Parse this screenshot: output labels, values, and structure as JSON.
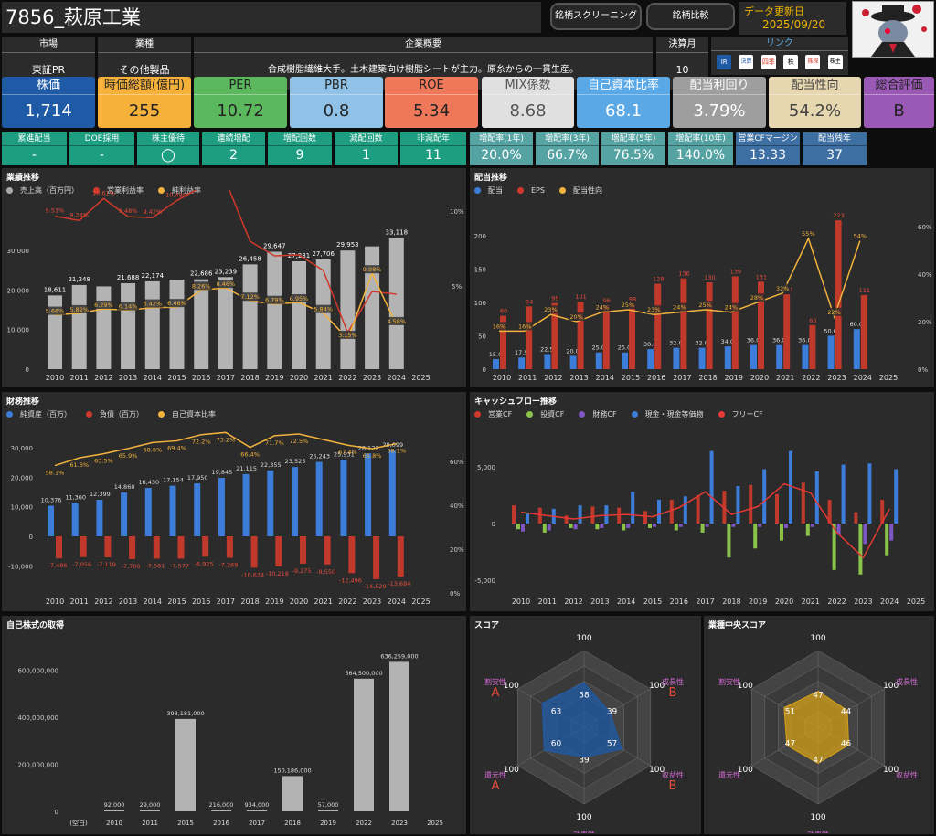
{
  "header": {
    "title": "7856_萩原工業",
    "screening_btn": "銘柄スクリーニング",
    "compare_btn": "銘柄比較",
    "update_label": "データ更新日",
    "update_date": "2025/09/20"
  },
  "info": {
    "market_h": "市場",
    "market_v": "東証PR",
    "industry_h": "業種",
    "industry_v": "その他製品",
    "summary_h": "企業概要",
    "summary_v": "合成樹脂繊維大手。土木建築向け樹脂シートが主力。原糸からの一貫生産。",
    "fy_h": "決算月",
    "fy_v": "10",
    "link_h": "リンク",
    "links": [
      "IR",
      "決算",
      "四季",
      "株",
      "株探",
      "株主"
    ]
  },
  "kpis": [
    {
      "label": "株価",
      "value": "1,714",
      "bg": "#1f5aa6",
      "fg": "#fff"
    },
    {
      "label": "時価総額(億円)",
      "value": "255",
      "bg": "#f5b13a",
      "fg": "#222"
    },
    {
      "label": "PER",
      "value": "10.72",
      "bg": "#5cb85c",
      "fg": "#222"
    },
    {
      "label": "PBR",
      "value": "0.8",
      "bg": "#8fc2e6",
      "fg": "#222"
    },
    {
      "label": "ROE",
      "value": "5.34",
      "bg": "#f0785a",
      "fg": "#222"
    },
    {
      "label": "MIX係数",
      "value": "8.68",
      "bg": "#e0e0e0",
      "fg": "#555"
    },
    {
      "label": "自己資本比率",
      "value": "68.1",
      "bg": "#5aa9e6",
      "fg": "#fff"
    },
    {
      "label": "配当利回り",
      "value": "3.79%",
      "bg": "#9e9e9e",
      "fg": "#fff"
    },
    {
      "label": "配当性向",
      "value": "54.2%",
      "bg": "#e6d7b0",
      "fg": "#444"
    },
    {
      "label": "総合評価",
      "value": "B",
      "bg": "#9b59b6",
      "fg": "#222"
    }
  ],
  "stats": [
    {
      "label": "累進配当",
      "value": "-",
      "bg": "#1e9e80"
    },
    {
      "label": "DOE採用",
      "value": "-",
      "bg": "#1e9e80"
    },
    {
      "label": "株主優待",
      "value": "◯",
      "bg": "#1e9e80"
    },
    {
      "label": "連続増配",
      "value": "2",
      "bg": "#1e9e80"
    },
    {
      "label": "増配回数",
      "value": "9",
      "bg": "#1e9e80"
    },
    {
      "label": "減配回数",
      "value": "1",
      "bg": "#1e9e80"
    },
    {
      "label": "非減配年",
      "value": "11",
      "bg": "#1e9e80"
    },
    {
      "label": "増配率(1年)",
      "value": "20.0%",
      "bg": "#56a3a3"
    },
    {
      "label": "増配率(3年)",
      "value": "66.7%",
      "bg": "#56a3a3"
    },
    {
      "label": "増配率(5年)",
      "value": "76.5%",
      "bg": "#56a3a3"
    },
    {
      "label": "増配率(10年)",
      "value": "140.0%",
      "bg": "#56a3a3"
    },
    {
      "label": "営業CFマージン",
      "value": "13.33",
      "bg": "#3e6fa3"
    },
    {
      "label": "配当残年",
      "value": "37",
      "bg": "#3e6fa3"
    }
  ],
  "panels": {
    "p1": "業績推移",
    "p2": "配当推移",
    "p3": "財務推移",
    "p4": "キャッシュフロー推移",
    "p5": "自己株式の取得",
    "p6": "スコア",
    "p7": "業種中央スコア"
  },
  "legends": {
    "p1": [
      {
        "t": "売上高（百万円）",
        "c": "#aaa"
      },
      {
        "t": "営業利益率",
        "c": "#d0392b"
      },
      {
        "t": "純利益率",
        "c": "#f2b33d"
      }
    ],
    "p2": [
      {
        "t": "配当",
        "c": "#3b7dd8"
      },
      {
        "t": "EPS",
        "c": "#d0392b"
      },
      {
        "t": "配当性向",
        "c": "#f2b33d"
      }
    ],
    "p3": [
      {
        "t": "純資産（百万）",
        "c": "#3b7dd8"
      },
      {
        "t": "負債（百万）",
        "c": "#d0392b"
      },
      {
        "t": "自己資本比率",
        "c": "#f2b33d"
      }
    ],
    "p4": [
      {
        "t": "営業CF",
        "c": "#d0392b"
      },
      {
        "t": "投資CF",
        "c": "#8bc34a"
      },
      {
        "t": "財務CF",
        "c": "#7e57c2"
      },
      {
        "t": "現金・現金等価物",
        "c": "#3b7dd8"
      },
      {
        "t": "フリーCF",
        "c": "#e53935"
      }
    ]
  },
  "chart_data": [
    {
      "type": "bar",
      "id": "sales",
      "years": [
        "2010",
        "2011",
        "2012",
        "2013",
        "2014",
        "2015",
        "2016",
        "2017",
        "2018",
        "2019",
        "2020",
        "2021",
        "2022",
        "2023",
        "2024",
        "2025"
      ],
      "sales": [
        18611,
        21248,
        null,
        21688,
        22174,
        null,
        22686,
        23239,
        26458,
        29647,
        27231,
        27706,
        29953,
        null,
        33118,
        null
      ],
      "sales_est": [
        18611,
        21248,
        20900,
        21688,
        22174,
        22600,
        22686,
        23239,
        26458,
        29647,
        27231,
        27706,
        29953,
        31000,
        33118,
        null
      ],
      "op_margin": [
        9.51,
        9.24,
        10.61,
        9.48,
        9.42,
        10.48,
        11.33,
        11.71,
        null,
        null,
        null,
        null,
        null,
        null,
        null,
        null
      ],
      "net_margin": [
        5.66,
        5.82,
        6.29,
        6.14,
        6.42,
        6.46,
        8.26,
        8.46,
        7.12,
        6.79,
        6.95,
        5.84,
        3.15,
        9.98,
        4.58,
        null
      ],
      "yticks": [
        "0",
        "10,000",
        "20,000",
        "30,000"
      ],
      "y2ticks": [
        "5%",
        "10%"
      ]
    },
    {
      "type": "bar",
      "id": "div",
      "years": [
        "2010",
        "2011",
        "2012",
        "2013",
        "2014",
        "2015",
        "2016",
        "2017",
        "2018",
        "2019",
        "2020",
        "2021",
        "2022",
        "2023",
        "2024",
        "2025"
      ],
      "div": [
        15.0,
        17.5,
        22.5,
        20.0,
        25.0,
        25.0,
        30.0,
        32.0,
        32.0,
        34.0,
        36.0,
        36.0,
        36.0,
        50.0,
        60.0,
        null
      ],
      "eps": [
        80,
        94,
        99,
        101,
        96,
        98,
        128,
        136,
        130,
        139,
        131,
        112,
        66,
        223,
        111,
        null
      ],
      "payout": [
        16,
        16,
        23,
        20,
        24,
        25,
        23,
        24,
        25,
        24,
        28,
        32,
        55,
        22,
        54,
        null
      ],
      "yticks": [
        "0",
        "50",
        "100",
        "150",
        "200"
      ],
      "y2ticks": [
        "0%",
        "20%",
        "40%",
        "60%"
      ]
    },
    {
      "type": "bar",
      "id": "fin",
      "years": [
        "2010",
        "2011",
        "2012",
        "2013",
        "2014",
        "2015",
        "2016",
        "2017",
        "2018",
        "2019",
        "2020",
        "2021",
        "2022",
        "2023",
        "2024",
        "2025"
      ],
      "equity": [
        10376,
        11360,
        12399,
        14860,
        16430,
        17154,
        17950,
        19845,
        21115,
        22355,
        23525,
        25243,
        25931,
        28122,
        29099,
        null
      ],
      "debt": [
        -7486,
        -7056,
        -7119,
        -7700,
        -7581,
        -7577,
        -6925,
        -7269,
        -10674,
        -10218,
        -9275,
        -9550,
        -12496,
        -14529,
        -13684,
        null
      ],
      "ratio": [
        58.1,
        61.6,
        63.5,
        65.9,
        68.6,
        69.4,
        72.2,
        73.2,
        66.4,
        71.7,
        72.5,
        null,
        67.4,
        65.8,
        68.1,
        null
      ],
      "yticks": [
        "-10,000",
        "0",
        "10,000",
        "20,000",
        "30,000"
      ],
      "y2ticks": [
        "0%",
        "20%",
        "40%",
        "60%"
      ]
    },
    {
      "type": "bar",
      "id": "cf",
      "years": [
        "2010",
        "2011",
        "2012",
        "2013",
        "2014",
        "2015",
        "2016",
        "2017",
        "2018",
        "2019",
        "2020",
        "2021",
        "2022",
        "2023",
        "2024",
        "2025"
      ],
      "op": [
        1600,
        1400,
        700,
        1500,
        1400,
        1100,
        2100,
        2500,
        2900,
        3400,
        2600,
        3600,
        2100,
        1000,
        2100,
        null
      ],
      "inv": [
        -500,
        -800,
        -400,
        -500,
        -600,
        -400,
        -600,
        -800,
        -3000,
        -2200,
        -1500,
        -1100,
        -4100,
        -4500,
        -2800,
        null
      ],
      "fin": [
        -700,
        -600,
        -500,
        -400,
        -400,
        -300,
        -300,
        -300,
        -300,
        -300,
        -400,
        -300,
        -1000,
        -1800,
        -1500,
        null
      ],
      "cash": [
        900,
        1300,
        1600,
        1600,
        2800,
        2100,
        2400,
        6400,
        3300,
        4800,
        6400,
        4600,
        5200,
        5300,
        4800,
        null
      ],
      "free": [
        1000,
        700,
        400,
        700,
        800,
        600,
        1400,
        2800,
        800,
        1500,
        3500,
        2700,
        -800,
        -3000,
        1300,
        null
      ],
      "yticks": [
        "-5,000",
        "0",
        "5,000"
      ]
    },
    {
      "type": "bar",
      "id": "treasury",
      "categories": [
        "(空白)",
        "2010",
        "2011",
        "2015",
        "2016",
        "2017",
        "2018",
        "2019",
        "2022",
        "2023",
        "2025"
      ],
      "values": [
        0,
        92000,
        29000,
        393181000,
        216000,
        934000,
        150186000,
        57000,
        564500000,
        636259000,
        0
      ],
      "labels": [
        "",
        "92,000",
        "29,000",
        "393,181,000",
        "216,000",
        "934,000",
        "150,186,000",
        "57,000",
        "564,500,000",
        "636,259,000",
        ""
      ],
      "yticks": [
        "0",
        "200,000,000",
        "400,000,000",
        "600,000,000"
      ]
    }
  ],
  "radar": {
    "axes": [
      "安全性",
      "成長性",
      "収益性",
      "効率性",
      "還元性",
      "割安性"
    ],
    "company": [
      58,
      39,
      57,
      39,
      60,
      63
    ],
    "company_grades": [
      "A",
      "B",
      "B",
      "B",
      "A",
      "A"
    ],
    "industry": [
      47,
      44,
      46,
      47,
      47,
      51
    ],
    "max": "100"
  }
}
